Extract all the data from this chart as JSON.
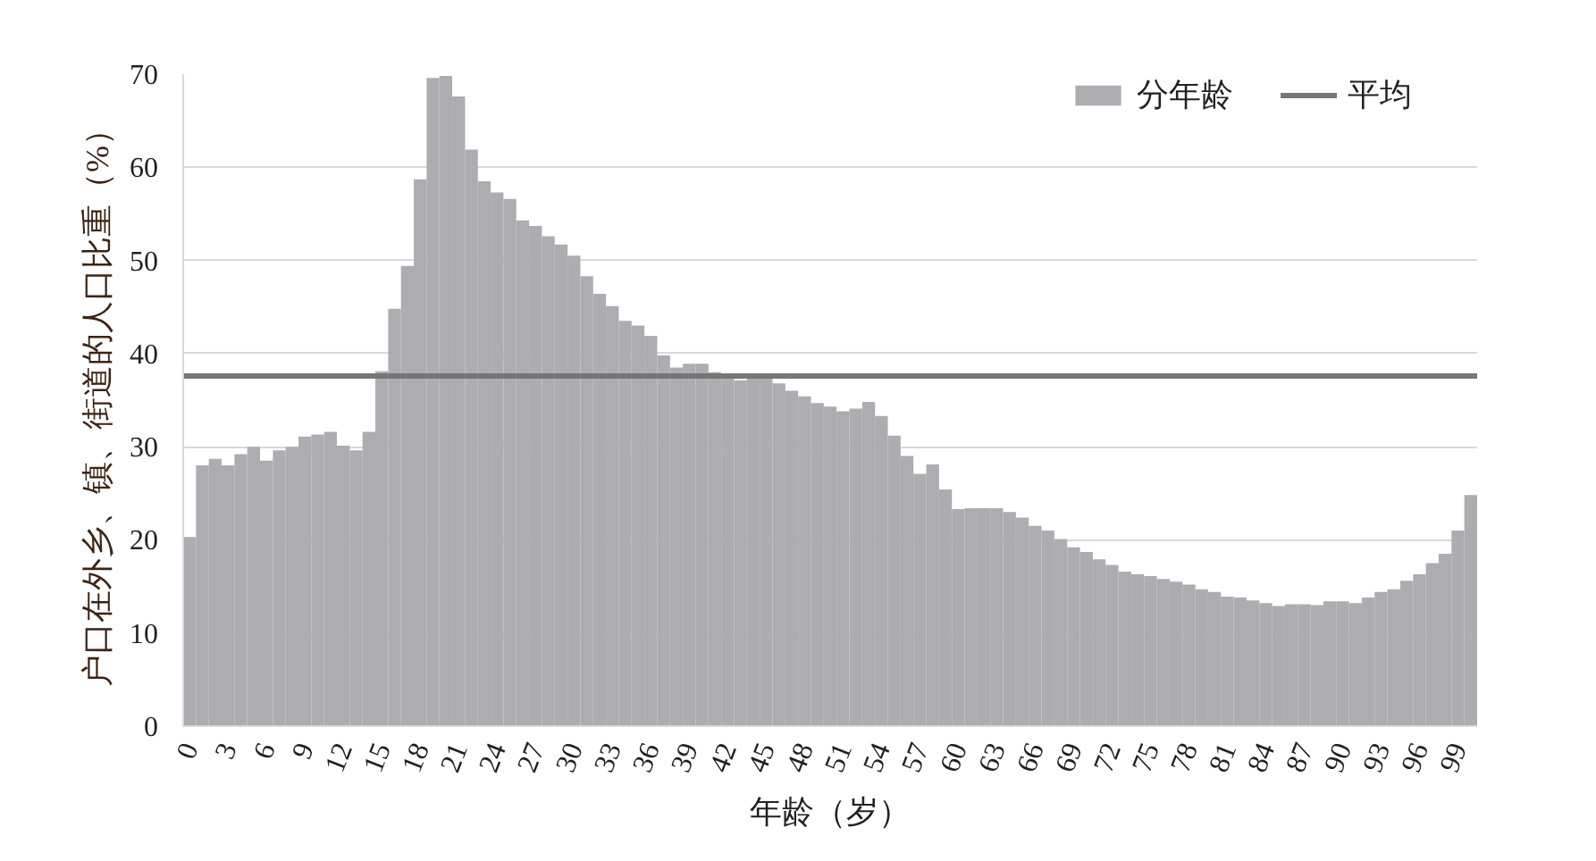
{
  "chart_data": {
    "type": "bar",
    "categories": [
      "0",
      null,
      null,
      "3",
      null,
      null,
      "6",
      null,
      null,
      "9",
      null,
      null,
      "12",
      null,
      null,
      "15",
      null,
      null,
      "18",
      null,
      null,
      "21",
      null,
      null,
      "24",
      null,
      null,
      "27",
      null,
      null,
      "30",
      null,
      null,
      "33",
      null,
      null,
      "36",
      null,
      null,
      "39",
      null,
      null,
      "42",
      null,
      null,
      "45",
      null,
      null,
      "48",
      null,
      null,
      "51",
      null,
      null,
      "54",
      null,
      null,
      "57",
      null,
      null,
      "60",
      null,
      null,
      "63",
      null,
      null,
      "66",
      null,
      null,
      "69",
      null,
      null,
      "72",
      null,
      null,
      "75",
      null,
      null,
      "78",
      null,
      null,
      "81",
      null,
      null,
      "84",
      null,
      null,
      "87",
      null,
      null,
      "90",
      null,
      null,
      "93",
      null,
      null,
      "96",
      null,
      null,
      "99",
      null
    ],
    "series": [
      {
        "name": "分年龄",
        "color": "#adadb1",
        "values": [
          20.3,
          28.0,
          28.7,
          28.0,
          29.2,
          30.0,
          28.5,
          29.6,
          30.0,
          31.1,
          31.3,
          31.6,
          30.1,
          29.6,
          31.6,
          38.1,
          44.8,
          49.4,
          58.7,
          69.6,
          69.8,
          67.6,
          61.9,
          58.5,
          57.3,
          56.6,
          54.3,
          53.7,
          52.6,
          51.7,
          50.5,
          48.3,
          46.4,
          45.1,
          43.5,
          43.0,
          41.9,
          39.8,
          38.5,
          38.9,
          38.9,
          38.0,
          37.6,
          37.1,
          37.3,
          37.3,
          36.8,
          36.0,
          35.4,
          34.7,
          34.3,
          33.8,
          34.1,
          34.8,
          33.3,
          31.2,
          29.0,
          27.1,
          28.1,
          25.4,
          23.3,
          23.4,
          23.4,
          23.4,
          23.0,
          22.4,
          21.5,
          21.0,
          20.1,
          19.2,
          18.7,
          17.9,
          17.3,
          16.6,
          16.3,
          16.1,
          15.8,
          15.5,
          15.2,
          14.7,
          14.4,
          13.9,
          13.8,
          13.5,
          13.2,
          12.9,
          13.1,
          13.1,
          13.0,
          13.4,
          13.4,
          13.2,
          13.8,
          14.4,
          14.7,
          15.6,
          16.3,
          17.5,
          18.5,
          21.0,
          24.8
        ]
      }
    ],
    "xlabel": "年龄（岁）",
    "ylabel": "户口在外乡、镇、街道的人口比重（%）",
    "ylim": [
      0,
      70
    ],
    "yticks": [
      0,
      10,
      20,
      30,
      40,
      50,
      60,
      70
    ],
    "grid": "y",
    "legend": "top right",
    "ref_lines": [
      {
        "axis": "y",
        "value": 37.6,
        "label": "平均",
        "color": "#767676"
      }
    ]
  }
}
